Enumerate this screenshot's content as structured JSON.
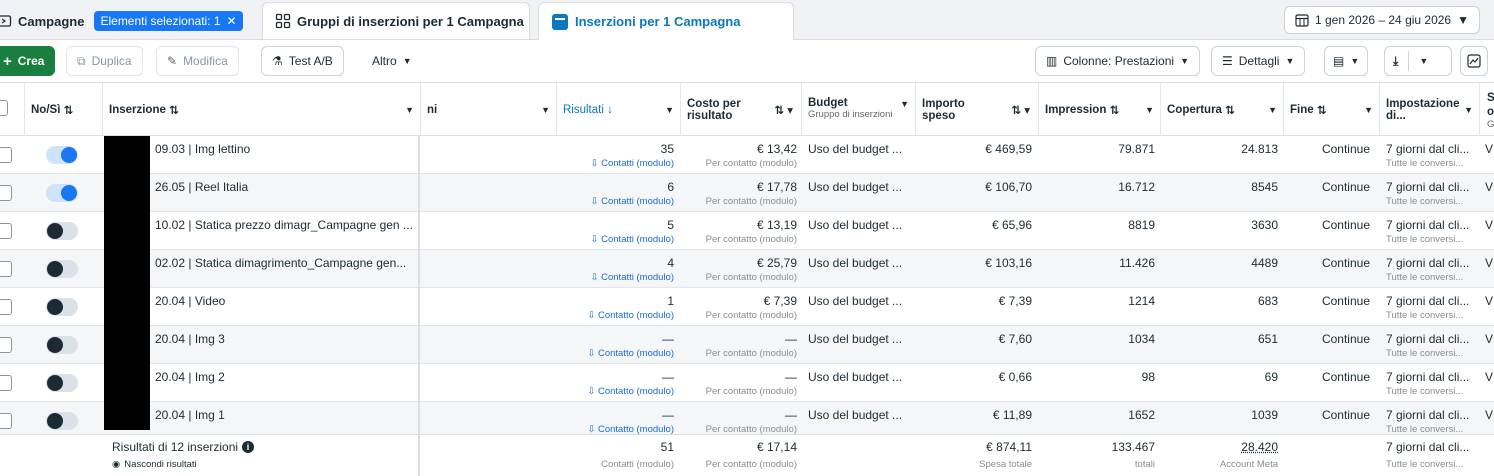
{
  "tabs": {
    "campagne": "Campagne",
    "selected_badge": "Elementi selezionati: 1",
    "gruppi": "Gruppi di inserzioni per 1 Campagna",
    "inserzioni": "Inserzioni per 1 Campagna",
    "date_range": "1 gen 2026 – 24 giu 2026"
  },
  "toolbar": {
    "crea": "Crea",
    "duplica": "Duplica",
    "modifica": "Modifica",
    "test_ab": "Test A/B",
    "altro": "Altro",
    "colonne": "Colonne: Prestazioni",
    "dettagli": "Dettagli"
  },
  "columns": {
    "onoff": "No/Sì",
    "inserzione": "Inserzione",
    "hidden": "ni",
    "risultati": "Risultati",
    "costo": "Costo per risultato",
    "budget": "Budget",
    "budget_sub": "Gruppo di inserzioni",
    "importo": "Importo speso",
    "impression": "Impression",
    "copertura": "Copertura",
    "fine": "Fine",
    "impostazione": "Impostazione di...",
    "last": "S o",
    "last_sub": "G"
  },
  "rows": [
    {
      "on": true,
      "name": "09.03 | Img lettino",
      "results": "35",
      "results_sub": "Contatti (modulo)",
      "cost": "€ 13,42",
      "cost_sub": "Per contatto (modulo)",
      "budget": "Uso del budget ...",
      "spent": "€ 469,59",
      "impr": "79.871",
      "reach": "24.813",
      "end": "Continue",
      "attr": "7 giorni dal cli...",
      "attr_sub": "Tutte le conversi...",
      "last": "V"
    },
    {
      "on": true,
      "name": "26.05 | Reel Italia",
      "results": "6",
      "results_sub": "Contatti (modulo)",
      "cost": "€ 17,78",
      "cost_sub": "Per contatto (modulo)",
      "budget": "Uso del budget ...",
      "spent": "€ 106,70",
      "impr": "16.712",
      "reach": "8545",
      "end": "Continue",
      "attr": "7 giorni dal cli...",
      "attr_sub": "Tutte le conversi...",
      "last": "V"
    },
    {
      "on": false,
      "name": "10.02 | Statica prezzo dimagr_Campagne gen ...",
      "results": "5",
      "results_sub": "Contatti (modulo)",
      "cost": "€ 13,19",
      "cost_sub": "Per contatto (modulo)",
      "budget": "Uso del budget ...",
      "spent": "€ 65,96",
      "impr": "8819",
      "reach": "3630",
      "end": "Continue",
      "attr": "7 giorni dal cli...",
      "attr_sub": "Tutte le conversi...",
      "last": "V"
    },
    {
      "on": false,
      "name": "02.02 | Statica dimagrimento_Campagne gen...",
      "results": "4",
      "results_sub": "Contatti (modulo)",
      "cost": "€ 25,79",
      "cost_sub": "Per contatto (modulo)",
      "budget": "Uso del budget ...",
      "spent": "€ 103,16",
      "impr": "11.426",
      "reach": "4489",
      "end": "Continue",
      "attr": "7 giorni dal cli...",
      "attr_sub": "Tutte le conversi...",
      "last": "V"
    },
    {
      "on": false,
      "name": "20.04 | Video",
      "results": "1",
      "results_sub": "Contatto (modulo)",
      "cost": "€ 7,39",
      "cost_sub": "Per contatto (modulo)",
      "budget": "Uso del budget ...",
      "spent": "€ 7,39",
      "impr": "1214",
      "reach": "683",
      "end": "Continue",
      "attr": "7 giorni dal cli...",
      "attr_sub": "Tutte le conversi...",
      "last": "V"
    },
    {
      "on": false,
      "name": "20.04 | Img 3",
      "results": "—",
      "results_sub": "Contatto (modulo)",
      "cost": "—",
      "cost_sub": "Per contatto (modulo)",
      "budget": "Uso del budget ...",
      "spent": "€ 7,60",
      "impr": "1034",
      "reach": "651",
      "end": "Continue",
      "attr": "7 giorni dal cli...",
      "attr_sub": "Tutte le conversi...",
      "last": "V"
    },
    {
      "on": false,
      "name": "20.04 | Img 2",
      "results": "—",
      "results_sub": "Contatto (modulo)",
      "cost": "—",
      "cost_sub": "Per contatto (modulo)",
      "budget": "Uso del budget ...",
      "spent": "€ 0,66",
      "impr": "98",
      "reach": "69",
      "end": "Continue",
      "attr": "7 giorni dal cli...",
      "attr_sub": "Tutte le conversi...",
      "last": "V"
    },
    {
      "on": false,
      "name": "20.04 | Img 1",
      "results": "—",
      "results_sub": "Contatto (modulo)",
      "cost": "—",
      "cost_sub": "Per contatto (modulo)",
      "budget": "Uso del budget ...",
      "spent": "€ 11,89",
      "impr": "1652",
      "reach": "1039",
      "end": "Continue",
      "attr": "7 giorni dal cli...",
      "attr_sub": "Tutte le conversi...",
      "last": "V"
    }
  ],
  "footer": {
    "label": "Risultati di 12 inserzioni",
    "hide": "Nascondi risultati",
    "results": "51",
    "results_sub": "Contatti (modulo)",
    "cost": "€ 17,14",
    "cost_sub": "Per contatto (modulo)",
    "spent": "€ 874,11",
    "spent_sub": "Spesa totale",
    "impr": "133.467",
    "impr_sub": "totali",
    "reach": "28.420",
    "reach_sub": "Account Meta",
    "attr": "7 giorni dal cli...",
    "attr_sub": "Tutte le conversi..."
  },
  "colors": {
    "accent": "#1877f2",
    "create": "#1a7e3e",
    "link": "#1a6bd6"
  }
}
